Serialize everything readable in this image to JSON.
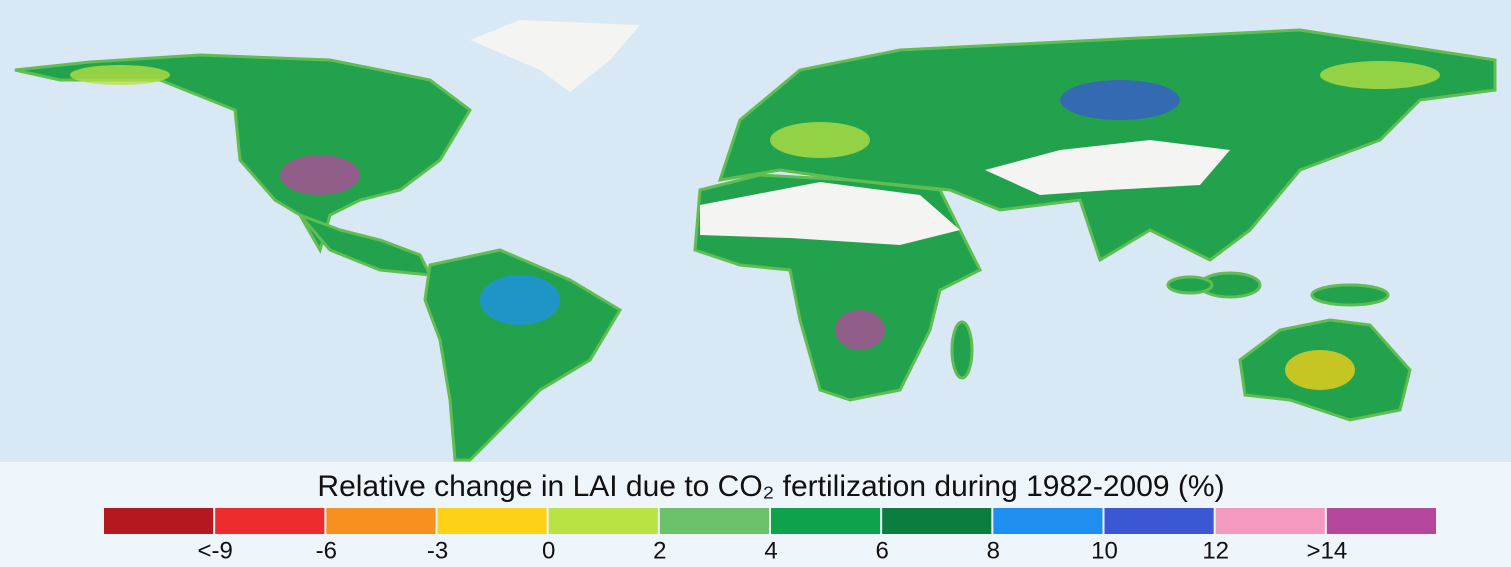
{
  "map": {
    "legend": {
      "title": "Relative change in LAI due to CO₂ fertilization during 1982-2009 (%)",
      "colors": [
        "#b5191f",
        "#ee2b2e",
        "#f7901e",
        "#fcd116",
        "#b9e243",
        "#6cc26b",
        "#0da24b",
        "#0b7d3e",
        "#1e8ff0",
        "#3b57d3",
        "#f49ac1",
        "#b5479c"
      ],
      "labels": [
        "<-9",
        "-6",
        "-3",
        "0",
        "2",
        "4",
        "6",
        "8",
        "10",
        "12",
        ">14"
      ]
    }
  }
}
